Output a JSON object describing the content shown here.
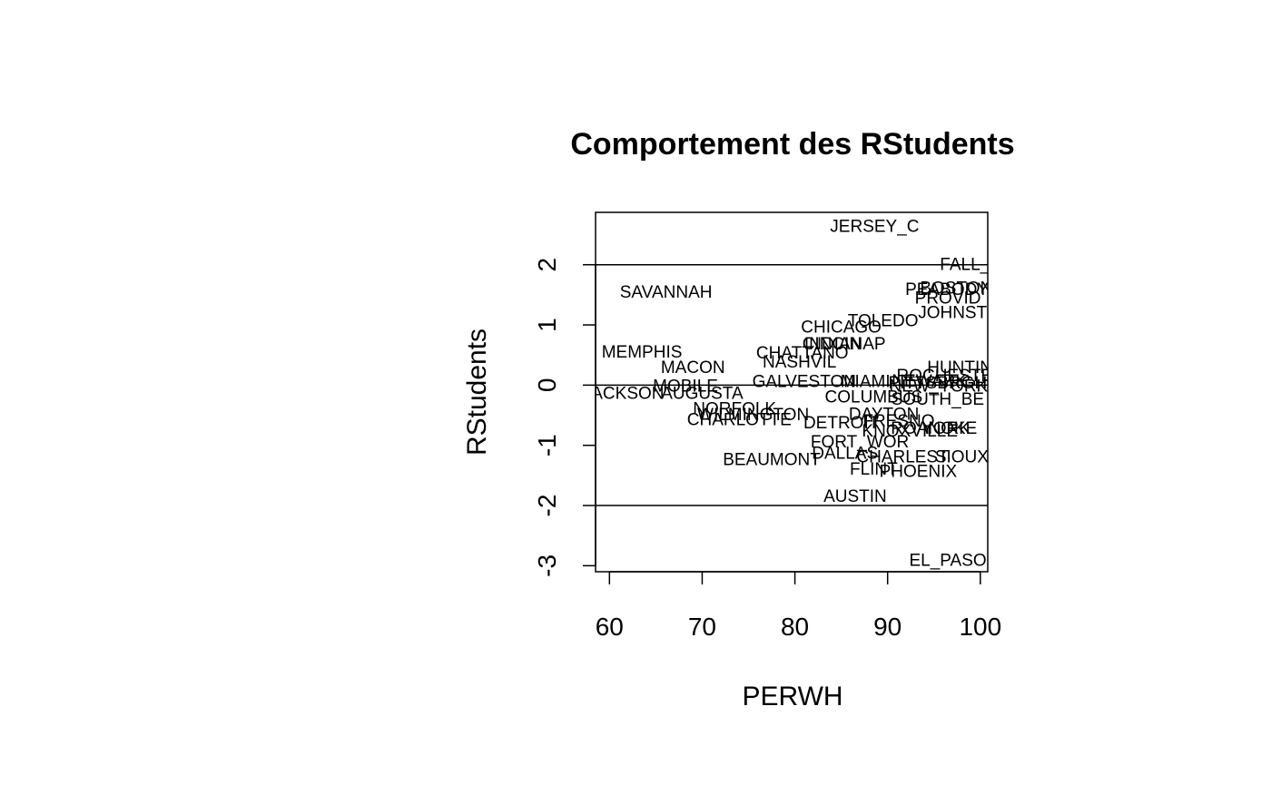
{
  "chart_data": {
    "type": "scatter",
    "title": "Comportement des RStudents",
    "xlabel": "PERWH",
    "ylabel": "RStudents",
    "xlim": [
      58.5,
      100.8
    ],
    "ylim": [
      -3.1,
      2.87
    ],
    "xticks": [
      "60",
      "70",
      "80",
      "90",
      "100"
    ],
    "xtick_values": [
      60,
      70,
      80,
      90,
      100
    ],
    "yticks": [
      "-3",
      "-2",
      "-1",
      "0",
      "1",
      "2"
    ],
    "ytick_values": [
      -3,
      -2,
      -1,
      0,
      1,
      2
    ],
    "reference_lines_y": [
      2,
      0,
      -2
    ],
    "grid": false,
    "marker": "text",
    "points": [
      {
        "label": "JERSEY_C",
        "x": 88.6,
        "y": 2.65
      },
      {
        "label": "FALL_R",
        "x": 99.0,
        "y": 2.02
      },
      {
        "label": "SAVANNAH",
        "x": 66.1,
        "y": 1.56
      },
      {
        "label": "BOSTON",
        "x": 97.4,
        "y": 1.63
      },
      {
        "label": "PEABODY",
        "x": 96.4,
        "y": 1.6
      },
      {
        "label": "PROVID",
        "x": 96.5,
        "y": 1.46
      },
      {
        "label": "TOLEDO",
        "x": 89.5,
        "y": 1.08
      },
      {
        "label": "JOHNST",
        "x": 97.0,
        "y": 1.22
      },
      {
        "label": "CHICAGO",
        "x": 85.0,
        "y": 0.98
      },
      {
        "label": "INDIANAP",
        "x": 85.4,
        "y": 0.7
      },
      {
        "label": "CINCIN",
        "x": 84.0,
        "y": 0.7
      },
      {
        "label": "CHATTANO",
        "x": 80.8,
        "y": 0.55
      },
      {
        "label": "MEMPHIS",
        "x": 63.5,
        "y": 0.56
      },
      {
        "label": "NASHVIL",
        "x": 80.5,
        "y": 0.4
      },
      {
        "label": "MACON",
        "x": 69.0,
        "y": 0.31
      },
      {
        "label": "HUNTING",
        "x": 98.5,
        "y": 0.31
      },
      {
        "label": "GALVESTON",
        "x": 81.0,
        "y": 0.07
      },
      {
        "label": "MIAMI",
        "x": 87.6,
        "y": 0.07
      },
      {
        "label": "ROCHESTER",
        "x": 96.8,
        "y": 0.17
      },
      {
        "label": "PITTSBRGH",
        "x": 95.4,
        "y": 0.05
      },
      {
        "label": "NEWARK",
        "x": 94.5,
        "y": 0.08
      },
      {
        "label": "NEW_YORK",
        "x": 95.5,
        "y": 0.0
      },
      {
        "label": "MOBILE",
        "x": 68.2,
        "y": 0.0
      },
      {
        "label": "AUGUSTA",
        "x": 70.0,
        "y": -0.12
      },
      {
        "label": "JACKSON",
        "x": 61.5,
        "y": -0.12
      },
      {
        "label": "COLUMBUS",
        "x": 88.5,
        "y": -0.18
      },
      {
        "label": "SOUTH_BE",
        "x": 95.4,
        "y": -0.22
      },
      {
        "label": "NORFOLK",
        "x": 73.5,
        "y": -0.38
      },
      {
        "label": "WILMINGTON",
        "x": 75.5,
        "y": -0.48
      },
      {
        "label": "CHARLOTTE",
        "x": 74.0,
        "y": -0.56
      },
      {
        "label": "DAYTON",
        "x": 89.6,
        "y": -0.47
      },
      {
        "label": "DETROIT",
        "x": 85.0,
        "y": -0.61
      },
      {
        "label": "FRESNO",
        "x": 91.2,
        "y": -0.58
      },
      {
        "label": "YORK",
        "x": 96.3,
        "y": -0.7
      },
      {
        "label": "ROANOKE",
        "x": 95.0,
        "y": -0.7
      },
      {
        "label": "KNOXVILLE",
        "x": 92.4,
        "y": -0.75
      },
      {
        "label": "FORT_WOR",
        "x": 87.0,
        "y": -0.93
      },
      {
        "label": "DALLAS",
        "x": 85.4,
        "y": -1.12
      },
      {
        "label": "CHARLEST",
        "x": 91.6,
        "y": -1.18
      },
      {
        "label": "SIOUX",
        "x": 98.0,
        "y": -1.18
      },
      {
        "label": "BEAUMONT",
        "x": 77.5,
        "y": -1.22
      },
      {
        "label": "FLINT",
        "x": 88.5,
        "y": -1.38
      },
      {
        "label": "PHOENIX",
        "x": 93.3,
        "y": -1.42
      },
      {
        "label": "AUSTIN",
        "x": 86.5,
        "y": -1.83
      },
      {
        "label": "EL_PASO",
        "x": 96.5,
        "y": -2.9
      }
    ]
  }
}
